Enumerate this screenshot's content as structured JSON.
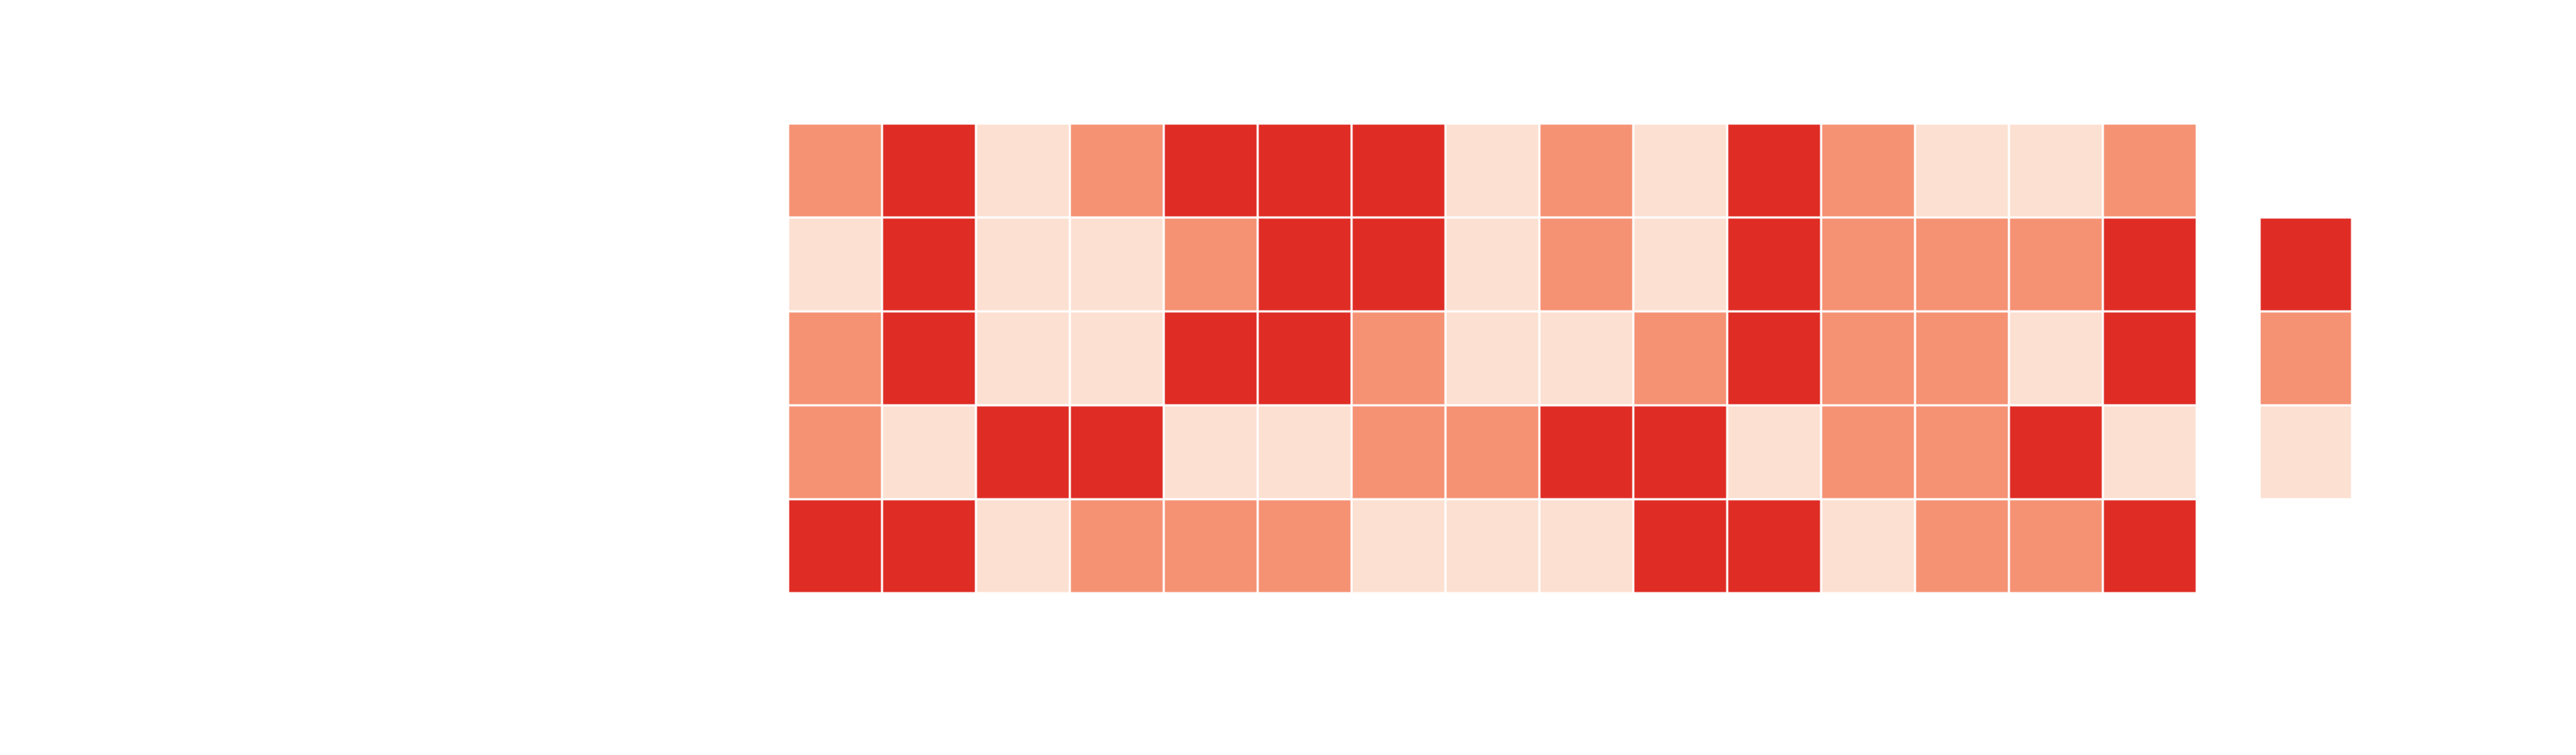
{
  "chart_data": {
    "type": "heatmap",
    "title": "",
    "xlabel": "",
    "ylabel": "",
    "rows": 5,
    "cols": 15,
    "levels": [
      0,
      1,
      2
    ],
    "values": [
      [
        1,
        2,
        0,
        1,
        2,
        2,
        2,
        0,
        1,
        0,
        2,
        1,
        0,
        0,
        1
      ],
      [
        0,
        2,
        0,
        0,
        1,
        2,
        2,
        0,
        1,
        0,
        2,
        1,
        1,
        1,
        2
      ],
      [
        1,
        2,
        0,
        0,
        2,
        2,
        1,
        0,
        0,
        1,
        2,
        1,
        1,
        0,
        2
      ],
      [
        1,
        0,
        2,
        2,
        0,
        0,
        1,
        1,
        2,
        2,
        0,
        1,
        1,
        2,
        0
      ],
      [
        2,
        2,
        0,
        1,
        1,
        1,
        0,
        0,
        0,
        2,
        2,
        0,
        1,
        1,
        2
      ]
    ],
    "legend": {
      "placement": "right",
      "order": [
        2,
        1,
        0
      ]
    },
    "colors": {
      "0": "#fce0d2",
      "1": "#f59274",
      "2": "#df2d26",
      "cell_border": "#ffffff",
      "background": "#ffffff"
    },
    "grid": false
  }
}
